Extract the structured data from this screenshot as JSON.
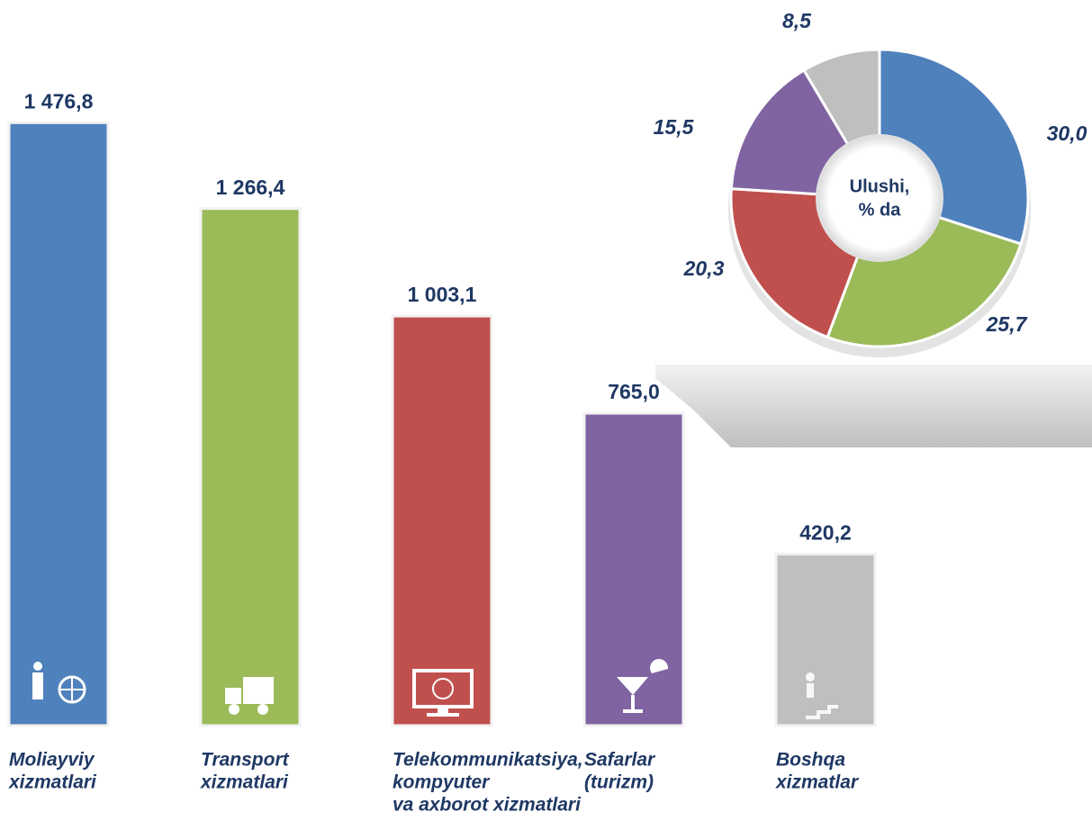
{
  "chart_data": [
    {
      "type": "bar",
      "categories": [
        [
          "Moliayviy",
          "xizmatlari"
        ],
        [
          "Transport",
          "xizmatlari"
        ],
        [
          "Telekommunikatsiya,",
          "kompyuter",
          "va axborot xizmatlari"
        ],
        [
          "Safarlar",
          "(turizm)"
        ],
        [
          "Boshqa",
          "xizmatlar"
        ]
      ],
      "values": [
        1476.8,
        1266.4,
        1003.1,
        765.0,
        420.2
      ],
      "value_labels": [
        "1 476,8",
        "1 266,4",
        "1 003,1",
        "765,0",
        "420,2"
      ],
      "colors": [
        "#4f81bd",
        "#9bbb59",
        "#c0504d",
        "#8064a2",
        "#bfbfbf"
      ]
    },
    {
      "type": "pie",
      "center_label": [
        "Ulushi,",
        "% da"
      ],
      "values": [
        30.0,
        25.7,
        20.3,
        15.5,
        8.5
      ],
      "value_labels": [
        "30,0",
        "25,7",
        "20,3",
        "15,5",
        "8,5"
      ],
      "colors": [
        "#4f81bd",
        "#9bbb59",
        "#c0504d",
        "#8064a2",
        "#bfbfbf"
      ]
    }
  ]
}
